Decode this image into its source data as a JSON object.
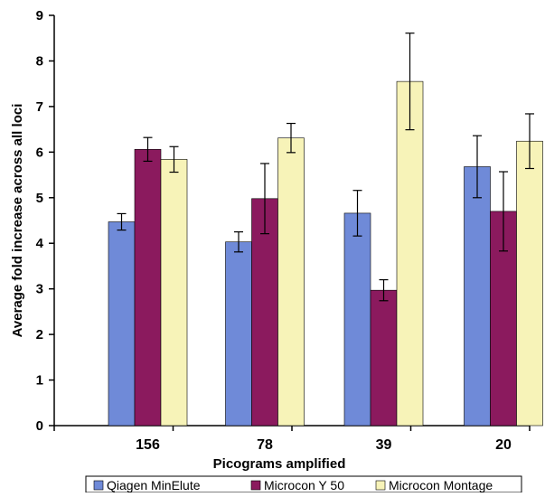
{
  "chart_data": {
    "type": "bar",
    "title": "",
    "xlabel": "Picograms amplified",
    "ylabel": "Average fold increase across all loci",
    "categories": [
      "156",
      "78",
      "39",
      "20"
    ],
    "ylim": [
      0,
      9
    ],
    "yticks": [
      "0",
      "1",
      "2",
      "3",
      "4",
      "5",
      "6",
      "7",
      "8",
      "9"
    ],
    "grid": false,
    "legend_position": "bottom",
    "series": [
      {
        "name": "Qiagen MinElute",
        "color": "#6f8ad8",
        "values": [
          4.47,
          4.03,
          4.66,
          5.68
        ],
        "error": [
          0.18,
          0.22,
          0.5,
          0.68
        ]
      },
      {
        "name": "Microcon Y 50",
        "color": "#8b1a5e",
        "values": [
          6.06,
          4.98,
          2.97,
          4.7
        ],
        "error": [
          0.26,
          0.77,
          0.23,
          0.87
        ]
      },
      {
        "name": "Microcon Montage",
        "color": "#f7f3b8",
        "values": [
          5.84,
          6.31,
          7.55,
          6.24
        ],
        "error": [
          0.28,
          0.32,
          1.06,
          0.6
        ]
      }
    ]
  }
}
